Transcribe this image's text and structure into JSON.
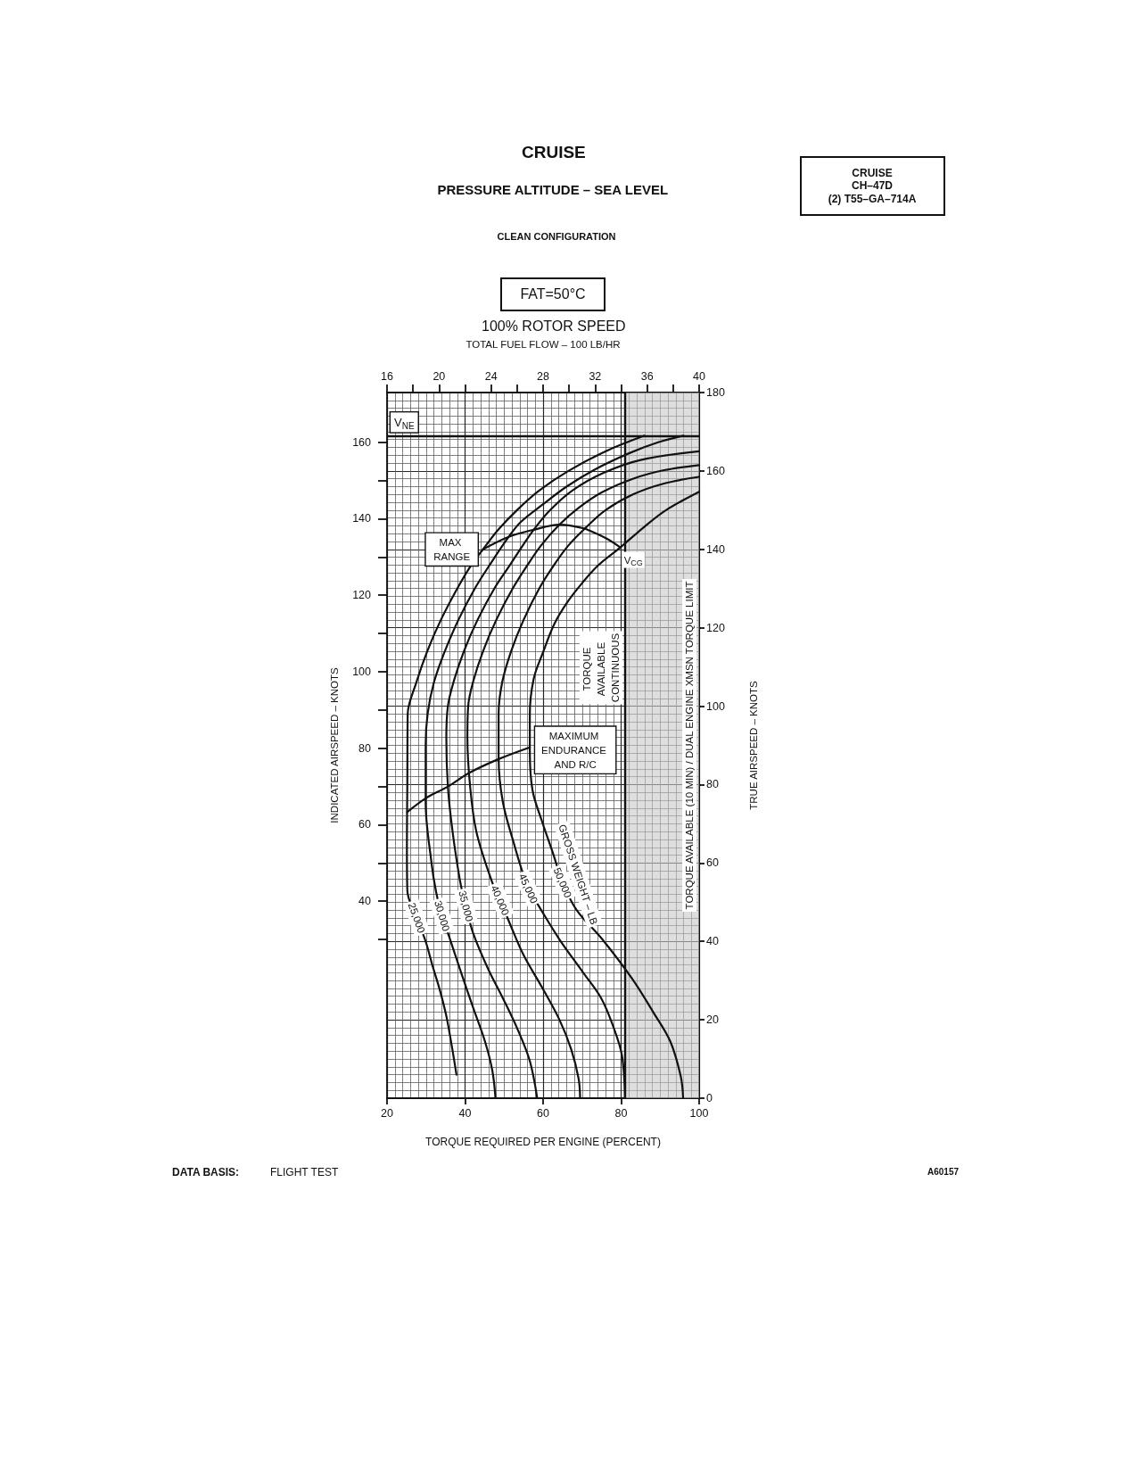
{
  "chart_data": {
    "type": "line",
    "title": "CRUISE",
    "subtitle": "PRESSURE ALTITUDE – SEA LEVEL",
    "xlabel": "TORQUE REQUIRED PER ENGINE (PERCENT)",
    "x2label": "TOTAL FUEL FLOW – 100 LB/HR",
    "ylabel": "INDICATED AIRSPEED – KNOTS",
    "y2label": "TRUE AIRSPEED – KNOTS",
    "xlim": [
      20,
      100
    ],
    "xticks": [
      20,
      40,
      60,
      80,
      100
    ],
    "x2lim": [
      16,
      40
    ],
    "x2ticks": [
      16,
      {
        "value": 18,
        "label": null
      },
      20,
      {
        "value": 22,
        "label": null
      },
      24,
      {
        "value": 26,
        "label": null
      },
      28,
      {
        "value": 30,
        "label": null
      },
      32,
      {
        "value": 34,
        "label": null
      },
      36,
      {
        "value": 38,
        "label": null
      },
      40
    ],
    "ylim": [
      -11.5,
      173
    ],
    "yticks": [
      {
        "value": 30,
        "label": null
      },
      40,
      {
        "value": 50,
        "label": null
      },
      60,
      {
        "value": 70,
        "label": null
      },
      80,
      {
        "value": 90,
        "label": null
      },
      100,
      {
        "value": 110,
        "label": null
      },
      120,
      {
        "value": 130,
        "label": null
      },
      140,
      {
        "value": 150,
        "label": null
      },
      160
    ],
    "y2lim": [
      0,
      180
    ],
    "y2ticks": [
      0,
      20,
      40,
      60,
      80,
      100,
      120,
      140,
      160,
      180
    ],
    "grid": true,
    "line_style": "solid",
    "series": [
      {
        "name": "25,000",
        "color": "#111111",
        "axis": "y2",
        "x": [
          37.8,
          35.4,
          33.7,
          31.6,
          29.9,
          27.6,
          25.2,
          25.1,
          25.2,
          25.3,
          27.5,
          30.3,
          33.8,
          38,
          41.6,
          44.6,
          48.5,
          53.3,
          59,
          66.5,
          76,
          86
        ],
        "values": [
          6,
          20,
          27,
          34,
          40,
          46,
          53,
          65,
          80,
          98,
          106,
          114,
          122,
          130,
          136,
          140,
          145,
          150,
          155,
          160,
          165,
          169
        ]
      },
      {
        "name": "30,000",
        "color": "#111111",
        "axis": "y2",
        "x": [
          47.8,
          47,
          45.1,
          42.1,
          39,
          36,
          34.1,
          32.6,
          31.4,
          29.9,
          29.9,
          30.4,
          32,
          34.8,
          38.3,
          42.5,
          46.3,
          51.2,
          54.3,
          60,
          66,
          73.5,
          82,
          89.5,
          96
        ],
        "values": [
          0,
          7,
          14.5,
          23,
          32,
          41,
          46.5,
          52.5,
          60,
          75.5,
          90,
          98,
          106,
          114,
          122,
          130,
          136,
          143.2,
          147,
          151.5,
          156,
          160.5,
          164.5,
          167.3,
          169
        ]
      },
      {
        "name": "35,000",
        "color": "#111111",
        "axis": "y2",
        "x": [
          58.5,
          56.6,
          53.5,
          49.7,
          45.9,
          42.1,
          40.2,
          38.7,
          36.8,
          35.6,
          35.2,
          35.6,
          37,
          39.7,
          43.2,
          47.5,
          51.5,
          54.8,
          57.6,
          61.8,
          67.5,
          75.5,
          85,
          100
        ],
        "values": [
          0,
          9.5,
          17.5,
          25.5,
          33,
          42,
          49,
          55.5,
          68,
          79.5,
          92,
          100,
          106,
          114,
          122,
          130,
          136,
          141,
          145,
          150,
          155,
          159.5,
          162.8,
          165
        ]
      },
      {
        "name": "40,000",
        "color": "#111111",
        "axis": "y2",
        "x": [
          69.5,
          69.1,
          67.2,
          64.2,
          59.6,
          55,
          51.5,
          49,
          46.8,
          42.9,
          41.3,
          40.6,
          40.8,
          42,
          44.6,
          48,
          52.2,
          56,
          59.5,
          64.2,
          69,
          75,
          83,
          91,
          100
        ],
        "values": [
          0,
          5,
          12.5,
          20,
          28.5,
          36.5,
          44.5,
          50.5,
          55.5,
          68,
          79.5,
          92,
          100,
          106,
          114,
          122,
          130,
          136,
          141,
          146.3,
          150.5,
          154.5,
          158,
          160.2,
          161.5
        ]
      },
      {
        "name": "45,000",
        "color": "#111111",
        "axis": "y2",
        "x": [
          81,
          80.2,
          77.9,
          74.9,
          70.3,
          64.2,
          58.9,
          56.2,
          54.3,
          52.8,
          49.7,
          48.6,
          48.6,
          49.5,
          51.8,
          55,
          59,
          62.8,
          66.5,
          70.7,
          76,
          83,
          91,
          100
        ],
        "values": [
          0,
          11,
          18.5,
          25.5,
          32,
          40.5,
          49,
          53.5,
          59,
          64,
          75.5,
          87,
          98,
          106,
          114,
          122,
          130,
          136,
          141,
          145.3,
          150,
          154,
          156.8,
          158.5
        ]
      },
      {
        "name": "50,000",
        "color": "#111111",
        "axis": "y2",
        "x": [
          95.9,
          95.3,
          92.6,
          88.2,
          82.8,
          75.2,
          68.6,
          65,
          62.7,
          59.6,
          57.3,
          56.6,
          56.6,
          57.6,
          59.9,
          62.9,
          66.2,
          70.1,
          74,
          79.8,
          86,
          91.5,
          100
        ],
        "values": [
          0,
          5.5,
          14.5,
          22,
          30.5,
          40.5,
          48,
          55,
          62,
          71,
          78.5,
          88.5,
          98,
          107,
          113.5,
          121,
          126.5,
          131.5,
          135.8,
          140.5,
          145.8,
          150,
          154.7
        ]
      },
      {
        "name": "MAX RANGE",
        "color": "#111111",
        "axis": "y2",
        "x": [
          44.6,
          51.2,
          57.6,
          64.2,
          70.7
        ],
        "values": [
          140,
          143.2,
          145,
          146.3,
          145.3
        ]
      },
      {
        "name": "MAXIMUM ENDURANCE AND R/C",
        "color": "#111111",
        "axis": "y2",
        "x": [
          25.2,
          29.9,
          35.6,
          41.1,
          48.6,
          56.6
        ],
        "values": [
          73,
          76.5,
          79.5,
          83,
          86.5,
          89.5
        ]
      },
      {
        "name": "V$_{CG}$",
        "color": "#111111",
        "axis": "y2",
        "x": [
          70.7,
          76.2,
          79.8
        ],
        "values": [
          145.3,
          142.8,
          140.5
        ]
      }
    ],
    "ref_lines": [
      {
        "axis": "y2",
        "value": 169,
        "label": "V$_{NE}$"
      },
      {
        "axis": "x",
        "value": 81,
        "label": "TORQUE AVAILABLE CONTINUOUS"
      }
    ],
    "bands": [
      {
        "axis": "x",
        "from": 81,
        "to": 100,
        "color": "#c8c8c8"
      }
    ],
    "annotations": [
      "CLEAN CONFIGURATION",
      "FAT=50°C",
      "100% ROTOR SPEED",
      "CRUISE\nCH–47D\n(2) T55–GA–714A",
      "DATA BASIS: FLIGHT TEST",
      "A60157",
      "TORQUE AVAILABLE (10 MIN) / DUAL ENGINE XMSN TORQUE LIMIT",
      "GROSS WEIGHT – LB"
    ]
  }
}
